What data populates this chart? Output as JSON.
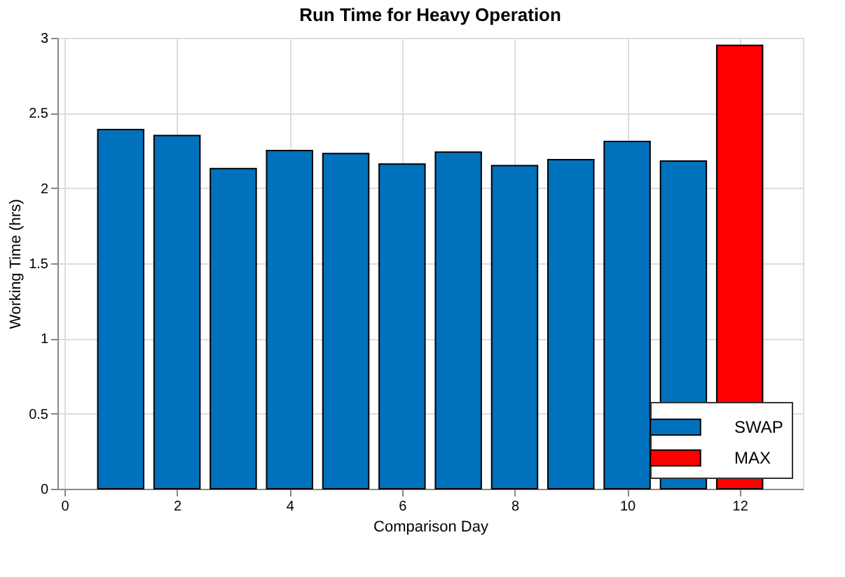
{
  "chart_data": {
    "type": "bar",
    "title": "Run Time for Heavy Operation",
    "xlabel": "Comparison Day",
    "ylabel": "Working Time (hrs)",
    "series": [
      {
        "name": "SWAP",
        "color": "#0072bd",
        "x": [
          1,
          2,
          3,
          4,
          5,
          6,
          7,
          8,
          9,
          10,
          11
        ],
        "values": [
          2.39,
          2.35,
          2.13,
          2.25,
          2.23,
          2.16,
          2.24,
          2.15,
          2.19,
          2.31,
          2.18
        ]
      },
      {
        "name": "MAX",
        "color": "#ff0000",
        "x": [
          12
        ],
        "values": [
          2.95
        ]
      }
    ],
    "xlim": [
      0,
      13
    ],
    "xticks": [
      0,
      2,
      4,
      6,
      8,
      10,
      12
    ],
    "ylim": [
      0,
      3
    ],
    "yticks": [
      0,
      0.5,
      1,
      1.5,
      2,
      2.5,
      3
    ],
    "grid": true,
    "legend": "bottom right"
  }
}
